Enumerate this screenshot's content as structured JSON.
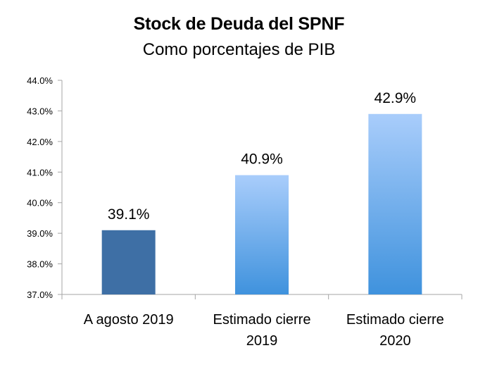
{
  "chart_data": {
    "type": "bar",
    "title": "Stock de Deuda del SPNF",
    "subtitle": "Como porcentajes de PIB",
    "categories": [
      [
        "A agosto 2019"
      ],
      [
        "Estimado cierre",
        "2019"
      ],
      [
        "Estimado cierre",
        "2020"
      ]
    ],
    "values": [
      39.1,
      40.9,
      42.9
    ],
    "value_labels": [
      "39.1%",
      "40.9%",
      "42.9%"
    ],
    "ylim": [
      37.0,
      44.0
    ],
    "yticks": [
      37.0,
      38.0,
      39.0,
      40.0,
      41.0,
      42.0,
      43.0,
      44.0
    ],
    "ytick_labels": [
      "37.0%",
      "38.0%",
      "39.0%",
      "40.0%",
      "41.0%",
      "42.0%",
      "43.0%",
      "44.0%"
    ],
    "grid": false,
    "colors": {
      "bar1": "#3e6fa5",
      "bar_gradient_top": "#a9cdfb",
      "bar_gradient_bottom": "#3f92dd",
      "axis": "#a6a6a6"
    }
  }
}
